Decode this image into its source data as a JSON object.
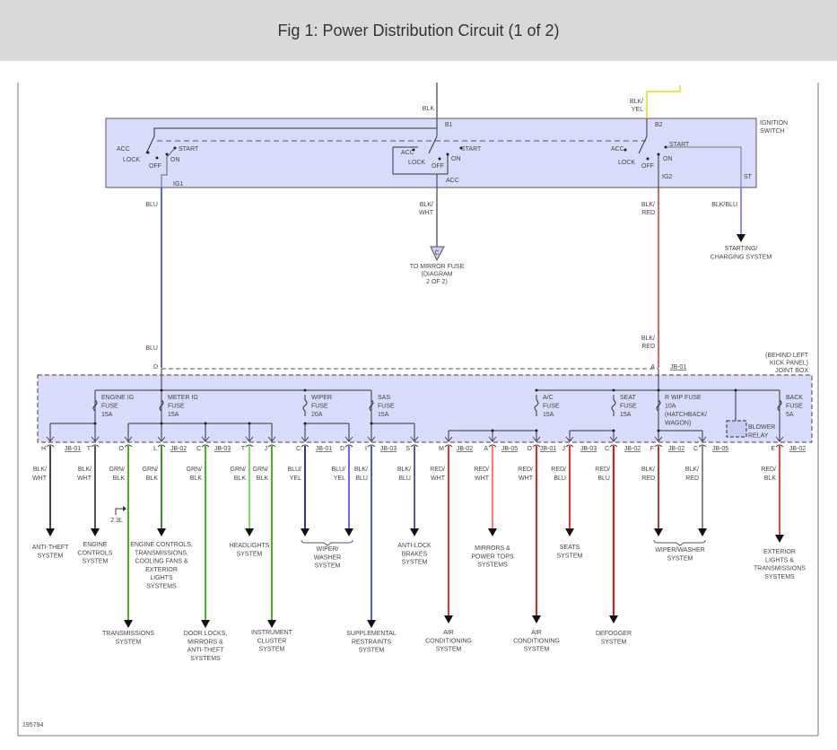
{
  "header": {
    "title": "Fig 1: Power Distribution Circuit (1 of 2)"
  },
  "figure_id": "195794",
  "colors": {
    "box_fill": "#d9dbfb",
    "blu": "#2233dd",
    "red": "#e03030",
    "grn": "#4cae2a",
    "yel": "#e8d820",
    "gray": "#555555"
  },
  "ignition_switch": {
    "title": [
      "IGNITION",
      "SWITCH"
    ],
    "inputs": {
      "b1_wire": "BLK",
      "b1_pin": "B1",
      "b2_wire": [
        "BLK/",
        "YEL"
      ],
      "b2_pin": "B2"
    },
    "positions1": {
      "acc": "ACC",
      "lock": "LOCK",
      "off": "OFF",
      "on": "ON",
      "start": "START"
    },
    "positions2": {
      "acc": "ACC",
      "lock": "LOCK",
      "off": "OFF",
      "on": "ON",
      "start": "START",
      "out": "ACC"
    },
    "positions3": {
      "acc": "ACC",
      "lock": "LOCK",
      "off": "OFF",
      "on": "ON",
      "start": "START"
    },
    "ig1": {
      "pin": "IG1",
      "wire": "BLU",
      "wire2": "BLU",
      "pin_jb": "D"
    },
    "acc": {
      "wire": [
        "BLK/",
        "WHT"
      ],
      "connector": "C",
      "dest": [
        "TO MIRROR FUSE",
        "(DIAGRAM",
        "2 OF 2)"
      ]
    },
    "ig2": {
      "pin": "IG2",
      "wire": [
        "BLK/",
        "RED"
      ],
      "wire2": [
        "BLK/",
        "RED"
      ],
      "pin_jb": "A",
      "jb": "JB-01"
    },
    "st": {
      "pin": "ST",
      "wire": "BLK/BLU",
      "dest": [
        "STARTING/",
        "CHARGING SYSTEM"
      ]
    }
  },
  "joint_box": {
    "title": [
      "(BEHIND LEFT",
      "KICK PANEL)",
      "JOINT BOX"
    ],
    "fuses": [
      {
        "label": [
          "ENGINE IG",
          "FUSE",
          "15A"
        ]
      },
      {
        "label": [
          "METER IG",
          "FUSE",
          "15A"
        ]
      },
      {
        "label": [
          "WIPER",
          "FUSE",
          "20A"
        ]
      },
      {
        "label": [
          "SAS",
          "FUSE",
          "15A"
        ]
      },
      {
        "label": [
          "A/C",
          "FUSE",
          "15A"
        ]
      },
      {
        "label": [
          "SEAT",
          "FUSE",
          "15A"
        ]
      },
      {
        "label": [
          "R WIP FUSE",
          "10A",
          "(HATCHBACK/",
          "WAGON)"
        ]
      },
      {
        "label": [
          "BACK",
          "FUSE",
          "5A"
        ]
      }
    ],
    "blower_relay": [
      "BLOWER",
      "RELAY"
    ]
  },
  "connectors": [
    "JB-01",
    "JB-02",
    "JB-03",
    "JB-01",
    "JB-03",
    "JB-02",
    "JB-05",
    "JB-01",
    "JB-03",
    "JB-02",
    "JB-02",
    "JB-05",
    "JB-02"
  ],
  "outputs": [
    {
      "pin": "H",
      "wire": [
        "BLK/",
        "WHT"
      ],
      "dest": [
        "ANTI-THEFT",
        "SYSTEM"
      ]
    },
    {
      "pin": "T",
      "wire": [
        "BLK/",
        "WHT"
      ],
      "dest": [
        "ENGINE",
        "CONTROLS",
        "SYSTEM"
      ]
    },
    {
      "pin": "O",
      "wire": [
        "GRN/",
        "BLK"
      ],
      "dest": [
        "TRANSMISSIONS",
        "SYSTEM"
      ],
      "note": "2.3L"
    },
    {
      "pin": "L",
      "wire": [
        "GRN/",
        "BLK"
      ],
      "dest": [
        "ENGINE CONTROLS,",
        "TRANSMISSIONS,",
        "COOLING FANS &",
        "EXTERIOR",
        "LIGHTS",
        "SYSTEMS"
      ]
    },
    {
      "pin": "C",
      "wire": [
        "GRN/",
        "BLK"
      ],
      "dest": [
        "DOOR LOCKS,",
        "MIRRORS &",
        "ANTI-THEFT",
        "SYSTEMS"
      ]
    },
    {
      "pin": "T",
      "wire": [
        "GRN/",
        "BLK"
      ],
      "dest": [
        "HEADLIGHTS",
        "SYSTEM"
      ]
    },
    {
      "pin": "J",
      "wire": [
        "GRN/",
        "BLK"
      ],
      "dest": [
        "INSTRUMENT",
        "CLUSTER",
        "SYSTEM"
      ]
    },
    {
      "pin": "C",
      "wire": [
        "BLU/",
        "YEL"
      ],
      "dest": []
    },
    {
      "pin": "D",
      "wire": [
        "BLU/",
        "YEL"
      ],
      "dest": [
        "WIPER/",
        "WASHER",
        "SYSTEM"
      ]
    },
    {
      "pin": "I",
      "wire": [
        "BLK/",
        "BLU"
      ],
      "dest": [
        "SUPPLEMENTAL",
        "RESTRAINTS",
        "SYSTEM"
      ]
    },
    {
      "pin": "S",
      "wire": [
        "BLK/",
        "BLU"
      ],
      "dest": [
        "ANTI-LOCK",
        "BRAKES",
        "SYSTEM"
      ]
    },
    {
      "pin": "M",
      "wire": [
        "RED/",
        "WHT"
      ],
      "dest": [
        "AIR",
        "CONDITIONING",
        "SYSTEM"
      ]
    },
    {
      "pin": "A",
      "wire": [
        "RED/",
        "WHT"
      ],
      "dest": [
        "MIRRORS &",
        "POWER TOPS",
        "SYSTEMS"
      ]
    },
    {
      "pin": "O",
      "wire": [
        "RED/",
        "WHT"
      ],
      "dest": [
        "AIR",
        "CONDITIONING",
        "SYSTEM"
      ]
    },
    {
      "pin": "J",
      "wire": [
        "RED/",
        "BLU"
      ],
      "dest": [
        "SEATS",
        "SYSTEM"
      ]
    },
    {
      "pin": "C",
      "wire": [
        "RED/",
        "BLU"
      ],
      "dest": [
        "DEFOGGER",
        "SYSTEM"
      ]
    },
    {
      "pin": "F",
      "wire": [
        "BLK/",
        "RED"
      ],
      "dest": []
    },
    {
      "pin": "C",
      "wire": [
        "BLK/",
        "RED"
      ],
      "dest": [
        "WIPER/WASHER",
        "SYSTEM"
      ]
    },
    {
      "pin": "E",
      "wire": [
        "RED/",
        "BLK"
      ],
      "dest": [
        "EXTERIOR",
        "LIGHTS &",
        "TRANSMISSIONS",
        "SYSTEMS"
      ]
    }
  ]
}
